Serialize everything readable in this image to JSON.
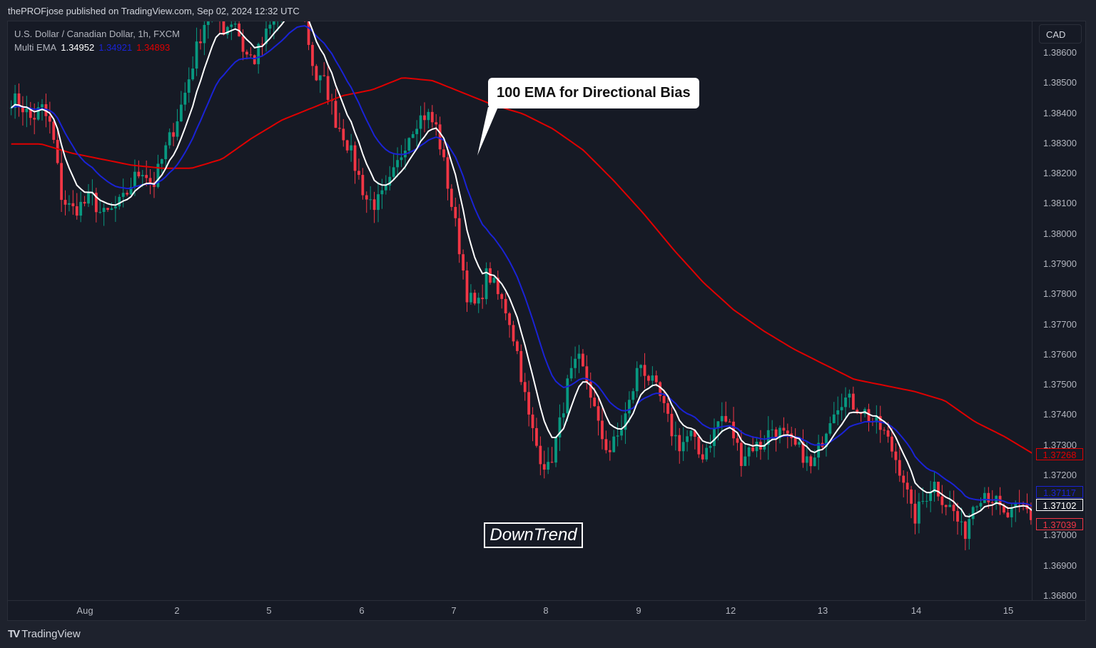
{
  "header": {
    "published": "thePROFjose published on TradingView.com, Sep 02, 2024 12:32 UTC"
  },
  "legend": {
    "symbol": "U.S. Dollar / Canadian Dollar, 1h, FXCM",
    "indicator": "Multi EMA",
    "values": [
      "1.34952",
      "1.34921",
      "1.34893"
    ]
  },
  "price_axis": {
    "currency": "CAD",
    "ticks": [
      "1.38600",
      "1.38500",
      "1.38400",
      "1.38300",
      "1.38200",
      "1.38100",
      "1.38000",
      "1.37900",
      "1.37800",
      "1.37700",
      "1.37600",
      "1.37500",
      "1.37400",
      "1.37300",
      "1.37200",
      "1.37100",
      "1.37000",
      "1.36900",
      "1.36800"
    ],
    "badges": [
      {
        "label": "1.37268",
        "color": "#e00000",
        "price": 1.37268
      },
      {
        "label": "1.37117",
        "color": "#1a23d6",
        "price": 1.37117
      },
      {
        "label": "1.37102",
        "color": "#ffffff",
        "price": 1.37102
      },
      {
        "label": "1.37039",
        "color": "#f23645",
        "price": 1.37039
      }
    ]
  },
  "time_axis": {
    "labels": [
      "Aug",
      "2",
      "5",
      "6",
      "7",
      "8",
      "9",
      "12",
      "13",
      "14",
      "15"
    ]
  },
  "annotations": {
    "callout": "100 EMA for Directional Bias",
    "box": "DownTrend"
  },
  "footer": {
    "brand": "TradingView",
    "logo": "TV"
  },
  "colors": {
    "up": "#089981",
    "down": "#f23645",
    "ema_fast": "#ffffff",
    "ema_mid": "#1a23d6",
    "ema_slow": "#e00000",
    "bg": "#161a25"
  },
  "chart_data": {
    "type": "candlestick",
    "title": "U.S. Dollar / Canadian Dollar, 1h, FXCM",
    "xlabel": "",
    "ylabel": "CAD",
    "ylim": [
      1.368,
      1.3868
    ],
    "x_ticks": [
      "Aug",
      "2",
      "5",
      "6",
      "7",
      "8",
      "9",
      "12",
      "13",
      "14",
      "15"
    ],
    "legend": [
      "Multi EMA fast (white)",
      "Multi EMA mid (blue)",
      "Multi EMA 100 (red)"
    ],
    "close_path": [
      1.3845,
      1.3843,
      1.3838,
      1.3842,
      1.3835,
      1.3812,
      1.3808,
      1.381,
      1.3812,
      1.3806,
      1.3808,
      1.3811,
      1.3818,
      1.3822,
      1.3816,
      1.3826,
      1.3835,
      1.3845,
      1.3858,
      1.387,
      1.3875,
      1.3868,
      1.3872,
      1.386,
      1.3858,
      1.3865,
      1.3872,
      1.3876,
      1.3878,
      1.387,
      1.3852,
      1.385,
      1.3838,
      1.3832,
      1.3822,
      1.3812,
      1.381,
      1.3814,
      1.3822,
      1.3832,
      1.3838,
      1.384,
      1.3835,
      1.3818,
      1.38,
      1.378,
      1.3775,
      1.3788,
      1.378,
      1.3774,
      1.376,
      1.374,
      1.3728,
      1.3722,
      1.3735,
      1.3752,
      1.3758,
      1.375,
      1.3735,
      1.3728,
      1.3734,
      1.3744,
      1.3758,
      1.3752,
      1.3746,
      1.3736,
      1.373,
      1.3734,
      1.3726,
      1.3732,
      1.374,
      1.3736,
      1.3726,
      1.373,
      1.373,
      1.3736,
      1.3734,
      1.373,
      1.3728,
      1.3722,
      1.3732,
      1.3742,
      1.3746,
      1.3744,
      1.3742,
      1.3738,
      1.3735,
      1.3728,
      1.372,
      1.3705,
      1.3712,
      1.3718,
      1.3712,
      1.3708,
      1.37,
      1.3712,
      1.3715,
      1.3712,
      1.3706,
      1.3708,
      1.371,
      1.3704
    ],
    "ema_100": [
      1.383,
      1.383,
      1.3827,
      1.3825,
      1.3823,
      1.3822,
      1.3822,
      1.3825,
      1.3832,
      1.3838,
      1.3842,
      1.3846,
      1.3848,
      1.3852,
      1.3851,
      1.3847,
      1.3843,
      1.384,
      1.3835,
      1.3828,
      1.3818,
      1.3807,
      1.3795,
      1.3784,
      1.3775,
      1.3768,
      1.3762,
      1.3757,
      1.3752,
      1.375,
      1.3748,
      1.3745,
      1.3738,
      1.3733,
      1.3727
    ],
    "last_values": {
      "ema_100": 1.37268,
      "ema_mid": 1.37117,
      "ema_fast": 1.37102,
      "close": 1.37039
    }
  }
}
